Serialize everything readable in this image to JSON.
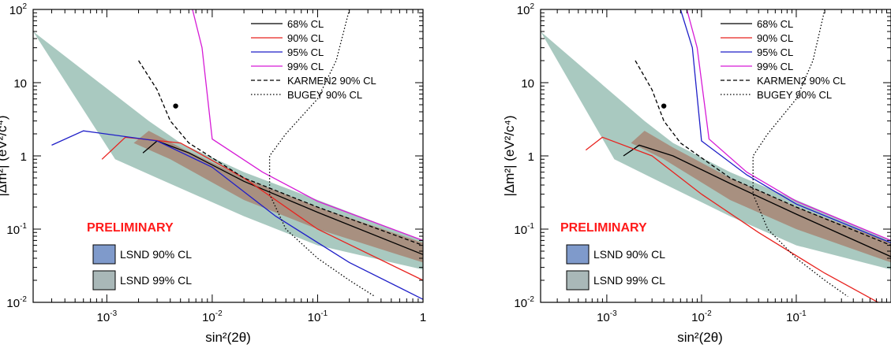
{
  "chart_data": [
    {
      "type": "line",
      "panel": "left",
      "xlabel": "sin²(2θ)",
      "ylabel": "|Δm²| (eV²/c⁴)",
      "xscale": "log",
      "yscale": "log",
      "xlim": [
        0.0002,
        1
      ],
      "ylim": [
        0.01,
        100
      ],
      "x_ticks": [
        {
          "value": 0.001,
          "base": "10",
          "exp": "-3"
        },
        {
          "value": 0.01,
          "base": "10",
          "exp": "-2"
        },
        {
          "value": 0.1,
          "base": "10",
          "exp": "-1"
        },
        {
          "value": 1,
          "base": "1",
          "exp": ""
        }
      ],
      "y_ticks": [
        {
          "value": 0.01,
          "base": "10",
          "exp": "-2"
        },
        {
          "value": 0.1,
          "base": "10",
          "exp": "-1"
        },
        {
          "value": 1,
          "base": "1",
          "exp": ""
        },
        {
          "value": 10,
          "base": "10",
          "exp": ""
        },
        {
          "value": 100,
          "base": "10",
          "exp": "2"
        }
      ],
      "annotation": "PRELIMINARY",
      "best_fit": {
        "x": 0.0045,
        "y": 4.8
      },
      "bands": [
        {
          "name": "LSND 99% CL",
          "color": "#a9c9c0",
          "upper": [
            [
              0.0002,
              50
            ],
            [
              0.0025,
              3.0
            ],
            [
              0.005,
              1.5
            ],
            [
              0.02,
              0.6
            ],
            [
              0.1,
              0.25
            ],
            [
              1,
              0.07
            ]
          ],
          "lower": [
            [
              0.0012,
              0.9
            ],
            [
              0.003,
              0.5
            ],
            [
              0.02,
              0.15
            ],
            [
              0.1,
              0.06
            ],
            [
              1,
              0.028
            ]
          ]
        },
        {
          "name": "LSND 90% CL",
          "color": "#a89080",
          "upper": [
            [
              0.0025,
              2.2
            ],
            [
              0.005,
              1.3
            ],
            [
              0.02,
              0.5
            ],
            [
              0.1,
              0.2
            ],
            [
              1,
              0.065
            ]
          ],
          "lower": [
            [
              0.0018,
              1.5
            ],
            [
              0.004,
              0.9
            ],
            [
              0.02,
              0.25
            ],
            [
              0.1,
              0.1
            ],
            [
              1,
              0.035
            ]
          ]
        }
      ],
      "series": [
        {
          "name": "68% CL",
          "color": "#000000",
          "dash": "solid",
          "x": [
            0.0022,
            0.003,
            0.006,
            0.02,
            0.1,
            1
          ],
          "y": [
            1.1,
            1.6,
            1.1,
            0.45,
            0.17,
            0.045
          ]
        },
        {
          "name": "90% CL",
          "color": "#e8231f",
          "dash": "solid",
          "x": [
            0.0009,
            0.0015,
            0.005,
            0.02,
            0.1,
            1
          ],
          "y": [
            0.9,
            1.8,
            1.5,
            0.5,
            0.1,
            0.02
          ]
        },
        {
          "name": "95% CL",
          "color": "#1f1fc8",
          "dash": "solid",
          "x": [
            0.0003,
            0.0006,
            0.003,
            0.01,
            0.04,
            0.2,
            1
          ],
          "y": [
            1.4,
            2.2,
            1.6,
            0.7,
            0.15,
            0.035,
            0.011
          ]
        },
        {
          "name": "99% CL",
          "color": "#d61bd6",
          "dash": "solid",
          "x": [
            0.0065,
            0.008,
            0.01,
            0.03,
            0.1,
            1
          ],
          "y": [
            100,
            30,
            1.7,
            0.6,
            0.24,
            0.07
          ]
        },
        {
          "name": "KARMEN2 90% CL",
          "color": "#000000",
          "dash": "dashed",
          "x": [
            0.002,
            0.003,
            0.004,
            0.006,
            0.02,
            0.1,
            1
          ],
          "y": [
            20,
            8,
            3,
            1.5,
            0.5,
            0.2,
            0.06
          ]
        },
        {
          "name": "BUGEY 90% CL",
          "color": "#000000",
          "dash": "dotted",
          "x": [
            0.2,
            0.15,
            0.1,
            0.05,
            0.035,
            0.035,
            0.05,
            0.1,
            0.2,
            0.35
          ],
          "y": [
            100,
            20,
            6,
            2,
            1,
            0.3,
            0.1,
            0.04,
            0.02,
            0.012
          ]
        }
      ]
    },
    {
      "type": "line",
      "panel": "right",
      "xlabel": "sin²(2θ)",
      "ylabel": "|Δm²| (eV²/c⁴)",
      "xscale": "log",
      "yscale": "log",
      "xlim": [
        0.0002,
        1
      ],
      "ylim": [
        0.01,
        100
      ],
      "x_ticks": [
        {
          "value": 0.001,
          "base": "10",
          "exp": "-3"
        },
        {
          "value": 0.01,
          "base": "10",
          "exp": "-2"
        },
        {
          "value": 0.1,
          "base": "10",
          "exp": "-1"
        }
      ],
      "y_ticks": [
        {
          "value": 0.01,
          "base": "10",
          "exp": "-2"
        },
        {
          "value": 0.1,
          "base": "10",
          "exp": "-1"
        },
        {
          "value": 1,
          "base": "1",
          "exp": ""
        },
        {
          "value": 10,
          "base": "10",
          "exp": ""
        },
        {
          "value": 100,
          "base": "10",
          "exp": "2"
        }
      ],
      "annotation": "PRELIMINARY",
      "best_fit": {
        "x": 0.004,
        "y": 4.8
      },
      "bands": [
        {
          "name": "LSND 99% CL",
          "color": "#a9c9c0",
          "upper": [
            [
              0.0002,
              50
            ],
            [
              0.0025,
              3.0
            ],
            [
              0.005,
              1.5
            ],
            [
              0.02,
              0.6
            ],
            [
              0.1,
              0.25
            ],
            [
              1,
              0.07
            ]
          ],
          "lower": [
            [
              0.0012,
              0.9
            ],
            [
              0.003,
              0.5
            ],
            [
              0.02,
              0.15
            ],
            [
              0.1,
              0.06
            ],
            [
              1,
              0.028
            ]
          ]
        },
        {
          "name": "LSND 90% CL",
          "color": "#a89080",
          "upper": [
            [
              0.0025,
              2.2
            ],
            [
              0.005,
              1.3
            ],
            [
              0.02,
              0.5
            ],
            [
              0.1,
              0.2
            ],
            [
              1,
              0.065
            ]
          ],
          "lower": [
            [
              0.0018,
              1.5
            ],
            [
              0.004,
              0.9
            ],
            [
              0.02,
              0.25
            ],
            [
              0.1,
              0.1
            ],
            [
              1,
              0.035
            ]
          ]
        }
      ],
      "series": [
        {
          "name": "68% CL",
          "color": "#000000",
          "dash": "solid",
          "x": [
            0.0015,
            0.0022,
            0.005,
            0.02,
            0.1,
            1
          ],
          "y": [
            1.0,
            1.4,
            1.0,
            0.42,
            0.16,
            0.042
          ]
        },
        {
          "name": "90% CL",
          "color": "#e8231f",
          "dash": "solid",
          "x": [
            0.0006,
            0.0009,
            0.003,
            0.01,
            0.04,
            0.2,
            1
          ],
          "y": [
            1.2,
            1.8,
            1.0,
            0.3,
            0.09,
            0.025,
            0.008
          ]
        },
        {
          "name": "95% CL",
          "color": "#1f1fc8",
          "dash": "solid",
          "x": [
            0.006,
            0.008,
            0.01,
            0.03,
            0.1,
            1
          ],
          "y": [
            100,
            30,
            1.6,
            0.55,
            0.22,
            0.065
          ]
        },
        {
          "name": "99% CL",
          "color": "#d61bd6",
          "dash": "solid",
          "x": [
            0.007,
            0.009,
            0.012,
            0.03,
            0.1,
            1
          ],
          "y": [
            100,
            30,
            1.7,
            0.6,
            0.24,
            0.07
          ]
        },
        {
          "name": "KARMEN2 90% CL",
          "color": "#000000",
          "dash": "dashed",
          "x": [
            0.002,
            0.003,
            0.004,
            0.006,
            0.02,
            0.1,
            1
          ],
          "y": [
            20,
            8,
            3,
            1.5,
            0.5,
            0.2,
            0.06
          ]
        },
        {
          "name": "BUGEY 90% CL",
          "color": "#000000",
          "dash": "dotted",
          "x": [
            0.2,
            0.15,
            0.1,
            0.05,
            0.035,
            0.035,
            0.05,
            0.1,
            0.2,
            0.35
          ],
          "y": [
            100,
            20,
            6,
            2,
            1,
            0.3,
            0.1,
            0.04,
            0.02,
            0.012
          ]
        }
      ]
    }
  ],
  "legend_boxes": [
    {
      "name": "LSND 90% CL",
      "color": "#7f9acb"
    },
    {
      "name": "LSND 99% CL",
      "color": "#a9b8b8"
    }
  ]
}
